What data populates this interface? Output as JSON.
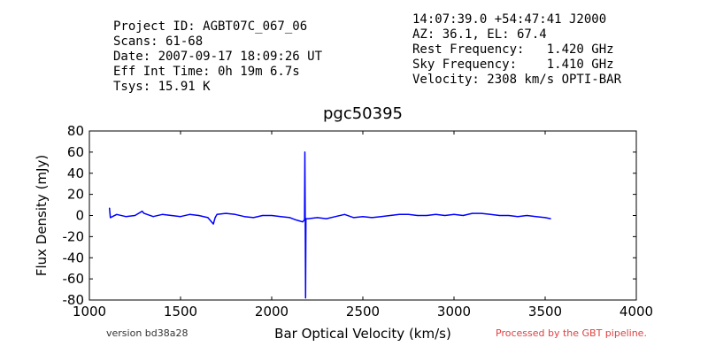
{
  "header": {
    "left_lines": [
      "Project ID: AGBT07C_067_06",
      "Scans: 61-68",
      "Date: 2007-09-17 18:09:26 UT",
      "Eff Int Time: 0h 19m 6.7s",
      "Tsys: 15.91 K"
    ],
    "right_lines": [
      "14:07:39.0 +54:47:41 J2000",
      "AZ: 36.1, EL: 67.4",
      "Rest Frequency:   1.420 GHz",
      "Sky Frequency:    1.410 GHz",
      "Velocity: 2308 km/s OPTI-BAR"
    ]
  },
  "footer": {
    "version": "version bd38a28",
    "processed": "Processed by the GBT pipeline."
  },
  "colors": {
    "line": "#0000ff",
    "processed_text": "#e04040"
  },
  "chart_data": {
    "type": "line",
    "title": "pgc50395",
    "xlabel": "Bar Optical Velocity (km/s)",
    "ylabel": "Flux Density (mJy)",
    "xlim": [
      1000,
      4000
    ],
    "ylim": [
      -80,
      80
    ],
    "xticks": [
      1000,
      1500,
      2000,
      2500,
      3000,
      3500,
      4000
    ],
    "yticks": [
      -80,
      -60,
      -40,
      -20,
      0,
      20,
      40,
      60,
      80
    ],
    "grid": false,
    "series": [
      {
        "x": [
          1110,
          1115,
          1150,
          1200,
          1250,
          1290,
          1300,
          1350,
          1400,
          1450,
          1500,
          1550,
          1600,
          1650,
          1680,
          1690,
          1700,
          1750,
          1800,
          1850,
          1900,
          1950,
          2000,
          2050,
          2100,
          2130,
          2150,
          2170,
          2180,
          2182,
          2184,
          2186,
          2188,
          2190,
          2200,
          2250,
          2300,
          2350,
          2400,
          2450,
          2500,
          2550,
          2600,
          2650,
          2700,
          2750,
          2800,
          2850,
          2900,
          2950,
          3000,
          3050,
          3100,
          3150,
          3200,
          3250,
          3300,
          3350,
          3400,
          3450,
          3500,
          3530
        ],
        "y": [
          7,
          -2,
          1,
          -1,
          0,
          4,
          2,
          -1,
          1,
          0,
          -1,
          1,
          0,
          -2,
          -8,
          -2,
          1,
          2,
          1,
          -1,
          -2,
          0,
          0,
          -1,
          -2,
          -4,
          -5,
          -6,
          -4,
          60,
          -2,
          -78,
          -3,
          -3,
          -3,
          -2,
          -3,
          -1,
          1,
          -2,
          -1,
          -2,
          -1,
          0,
          1,
          1,
          0,
          0,
          1,
          0,
          1,
          0,
          2,
          2,
          1,
          0,
          0,
          -1,
          0,
          -1,
          -2,
          -3
        ]
      }
    ]
  }
}
